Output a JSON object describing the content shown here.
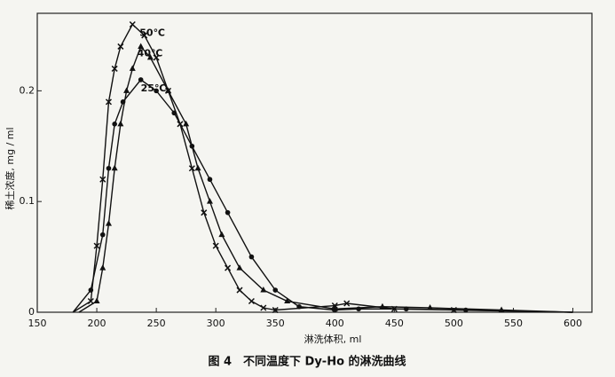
{
  "chart_data": {
    "type": "line",
    "title": "图 4　不同温度下 Dy-Ho 的淋洗曲线",
    "x_label": "淋洗体积, ml",
    "y_label": "稀土浓度, mg / ml",
    "xlim": [
      150,
      616
    ],
    "ylim": [
      0,
      0.27
    ],
    "xticks": [
      150,
      200,
      250,
      300,
      350,
      400,
      450,
      500,
      550,
      600
    ],
    "yticks": [
      0,
      0.1,
      0.2
    ],
    "series": [
      {
        "name": "50℃",
        "color": "#111111",
        "marker": "cross",
        "x": [
          180,
          195,
          200,
          205,
          210,
          215,
          220,
          230,
          240,
          250,
          260,
          270,
          280,
          290,
          300,
          310,
          320,
          330,
          340,
          350,
          400,
          410,
          450,
          500,
          600
        ],
        "values": [
          0,
          0.01,
          0.06,
          0.12,
          0.19,
          0.22,
          0.24,
          0.26,
          0.25,
          0.23,
          0.2,
          0.17,
          0.13,
          0.09,
          0.06,
          0.04,
          0.02,
          0.01,
          0.004,
          0.002,
          0.006,
          0.008,
          0.003,
          0.002,
          0
        ]
      },
      {
        "name": "40℃",
        "color": "#111111",
        "marker": "triangle",
        "x": [
          185,
          200,
          205,
          210,
          215,
          220,
          225,
          230,
          237,
          245,
          260,
          275,
          285,
          295,
          305,
          320,
          340,
          360,
          400,
          440,
          480,
          540,
          600
        ],
        "values": [
          0,
          0.01,
          0.04,
          0.08,
          0.13,
          0.17,
          0.2,
          0.22,
          0.24,
          0.23,
          0.2,
          0.17,
          0.13,
          0.1,
          0.07,
          0.04,
          0.02,
          0.01,
          0.003,
          0.005,
          0.004,
          0.002,
          0
        ]
      },
      {
        "name": "25℃",
        "color": "#111111",
        "marker": "dot",
        "x": [
          180,
          195,
          205,
          210,
          215,
          222,
          237,
          250,
          265,
          280,
          295,
          310,
          330,
          350,
          370,
          400,
          420,
          460,
          510,
          600
        ],
        "values": [
          0,
          0.02,
          0.07,
          0.13,
          0.17,
          0.19,
          0.21,
          0.2,
          0.18,
          0.15,
          0.12,
          0.09,
          0.05,
          0.02,
          0.005,
          0.002,
          0.003,
          0.003,
          0.002,
          0
        ]
      }
    ]
  }
}
